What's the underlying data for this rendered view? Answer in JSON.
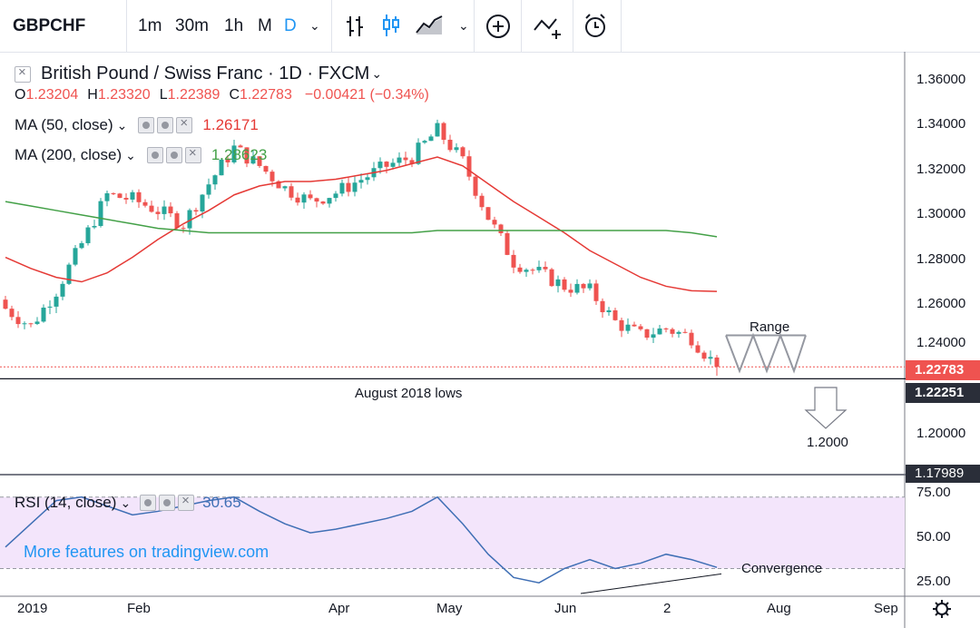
{
  "toolbar": {
    "symbol": "GBPCHF",
    "intervals": [
      "1m",
      "30m",
      "1h",
      "M",
      "D"
    ],
    "active_interval": "D",
    "icons": [
      "bars-style-icon",
      "candles-style-icon",
      "area-style-icon",
      "chevron-down-icon",
      "add-indicator-icon",
      "compare-icon",
      "alert-icon"
    ]
  },
  "legend": {
    "title": "British Pound / Swiss Franc · 1D · FXCM",
    "ohlc": {
      "o_label": "O",
      "o": "1.23204",
      "h_label": "H",
      "h": "1.23320",
      "l_label": "L",
      "l": "1.22389",
      "c_label": "C",
      "c": "1.22783",
      "chg": "−0.00421 (−0.34%)"
    },
    "ma50": {
      "label": "MA (50, close)",
      "value": "1.26171"
    },
    "ma200": {
      "label": "MA (200, close)",
      "value": "1.28623"
    },
    "rsi": {
      "label": "RSI (14, close)",
      "value": "30.65"
    }
  },
  "price_axis": {
    "ticks": [
      "1.36000",
      "1.34000",
      "1.32000",
      "1.30000",
      "1.28000",
      "1.26000",
      "1.24000",
      "1.20000"
    ],
    "last_price": "1.22783",
    "level_label": "1.22251",
    "bottom_label": "1.17989"
  },
  "rsi_axis": {
    "ticks": [
      "75.00",
      "50.00",
      "25.00"
    ]
  },
  "time_axis": {
    "labels": [
      "2019",
      "Feb",
      "Apr",
      "May",
      "Jun",
      "2",
      "Aug",
      "Sep"
    ]
  },
  "annotations": {
    "range": "Range",
    "aug_lows": "August 2018 lows",
    "target": "1.2000",
    "convergence": "Convergence",
    "watermark": "More features on tradingview.com"
  },
  "colors": {
    "up": "#26a69a",
    "down": "#ef5350",
    "ma50": "#e53935",
    "ma200": "#43a047",
    "rsi_line": "#3f6fb5",
    "rsi_band": "#f3e5fb",
    "accent": "#2196f3",
    "price_badge": "#ef5350"
  },
  "chart_data": {
    "type": "candlestick",
    "symbol": "GBPCHF",
    "timeframe": "1D",
    "ylim": [
      1.1799,
      1.368
    ],
    "x": [
      "2019-01-02",
      "2019-01-09",
      "2019-01-16",
      "2019-01-23",
      "2019-01-30",
      "2019-02-06",
      "2019-02-13",
      "2019-02-20",
      "2019-02-27",
      "2019-03-06",
      "2019-03-13",
      "2019-03-20",
      "2019-03-27",
      "2019-04-03",
      "2019-04-10",
      "2019-04-17",
      "2019-04-24",
      "2019-05-01",
      "2019-05-08",
      "2019-05-15",
      "2019-05-22",
      "2019-05-29",
      "2019-06-05",
      "2019-06-12",
      "2019-06-19",
      "2019-06-26",
      "2019-07-03",
      "2019-07-10",
      "2019-07-17"
    ],
    "series": [
      {
        "name": "Close",
        "values": [
          1.254,
          1.246,
          1.262,
          1.283,
          1.305,
          1.303,
          1.298,
          1.292,
          1.31,
          1.326,
          1.318,
          1.308,
          1.302,
          1.306,
          1.312,
          1.318,
          1.322,
          1.334,
          1.32,
          1.295,
          1.275,
          1.27,
          1.264,
          1.262,
          1.248,
          1.242,
          1.245,
          1.241,
          1.2278
        ]
      },
      {
        "name": "MA (50, close)",
        "values": [
          1.277,
          1.272,
          1.268,
          1.266,
          1.27,
          1.277,
          1.285,
          1.292,
          1.298,
          1.305,
          1.309,
          1.311,
          1.311,
          1.312,
          1.314,
          1.316,
          1.319,
          1.322,
          1.318,
          1.31,
          1.302,
          1.295,
          1.288,
          1.28,
          1.274,
          1.268,
          1.264,
          1.262,
          1.2617
        ]
      },
      {
        "name": "MA (200, close)",
        "values": [
          1.302,
          1.3,
          1.298,
          1.296,
          1.294,
          1.292,
          1.29,
          1.289,
          1.288,
          1.288,
          1.288,
          1.288,
          1.288,
          1.288,
          1.288,
          1.288,
          1.288,
          1.289,
          1.289,
          1.289,
          1.289,
          1.289,
          1.289,
          1.289,
          1.289,
          1.289,
          1.289,
          1.288,
          1.2862
        ]
      },
      {
        "name": "RSI (14, close)",
        "values": [
          42,
          55,
          68,
          70,
          65,
          60,
          62,
          65,
          68,
          70,
          62,
          55,
          50,
          52,
          55,
          58,
          62,
          70,
          55,
          38,
          25,
          22,
          30,
          35,
          30,
          33,
          38,
          35,
          30.65
        ]
      }
    ],
    "levels": {
      "aug_2018_lows": 1.22251,
      "target": 1.2,
      "range_top": 1.242,
      "range_bottom": 1.226
    },
    "rsi_bands": [
      70,
      30
    ],
    "rsi_ylim": [
      15,
      80
    ]
  }
}
